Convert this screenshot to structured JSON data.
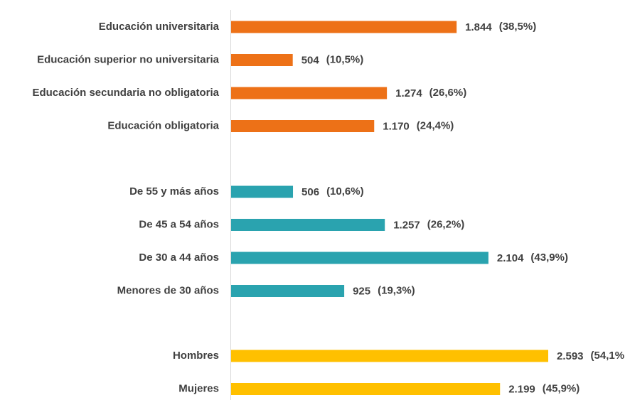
{
  "chart_data": {
    "type": "bar",
    "orientation": "horizontal",
    "groups": [
      {
        "color": "#ed7117",
        "categories": [
          "Educación universitaria",
          "Educación superior no universitaria",
          "Educación secundaria no obligatoria",
          "Educación obligatoria"
        ],
        "values": [
          1844,
          504,
          1274,
          1170
        ],
        "value_labels": [
          "1.844",
          "504",
          "1.274",
          "1.170"
        ],
        "shares": [
          38.5,
          10.5,
          26.6,
          24.4
        ],
        "share_labels": [
          "(38,5%)",
          "(10,5%)",
          "(26,6%)",
          "(24,4%)"
        ]
      },
      {
        "color": "#2aa3af",
        "categories": [
          "De 55 y más años",
          "De 45 a 54 años",
          "De 30 a 44 años",
          "Menores de 30 años"
        ],
        "values": [
          506,
          1257,
          2104,
          925
        ],
        "value_labels": [
          "506",
          "1.257",
          "2.104",
          "925"
        ],
        "shares": [
          10.6,
          26.2,
          43.9,
          19.3
        ],
        "share_labels": [
          "(10,6%)",
          "(26,2%)",
          "(43,9%)",
          "(19,3%)"
        ]
      },
      {
        "color": "#ffc000",
        "categories": [
          "Hombres",
          "Mujeres"
        ],
        "values": [
          2593,
          2199
        ],
        "value_labels": [
          "2.593",
          "2.199"
        ],
        "shares": [
          54.1,
          45.9
        ],
        "share_labels": [
          "(54,1%",
          "(45,9%)"
        ]
      }
    ]
  }
}
